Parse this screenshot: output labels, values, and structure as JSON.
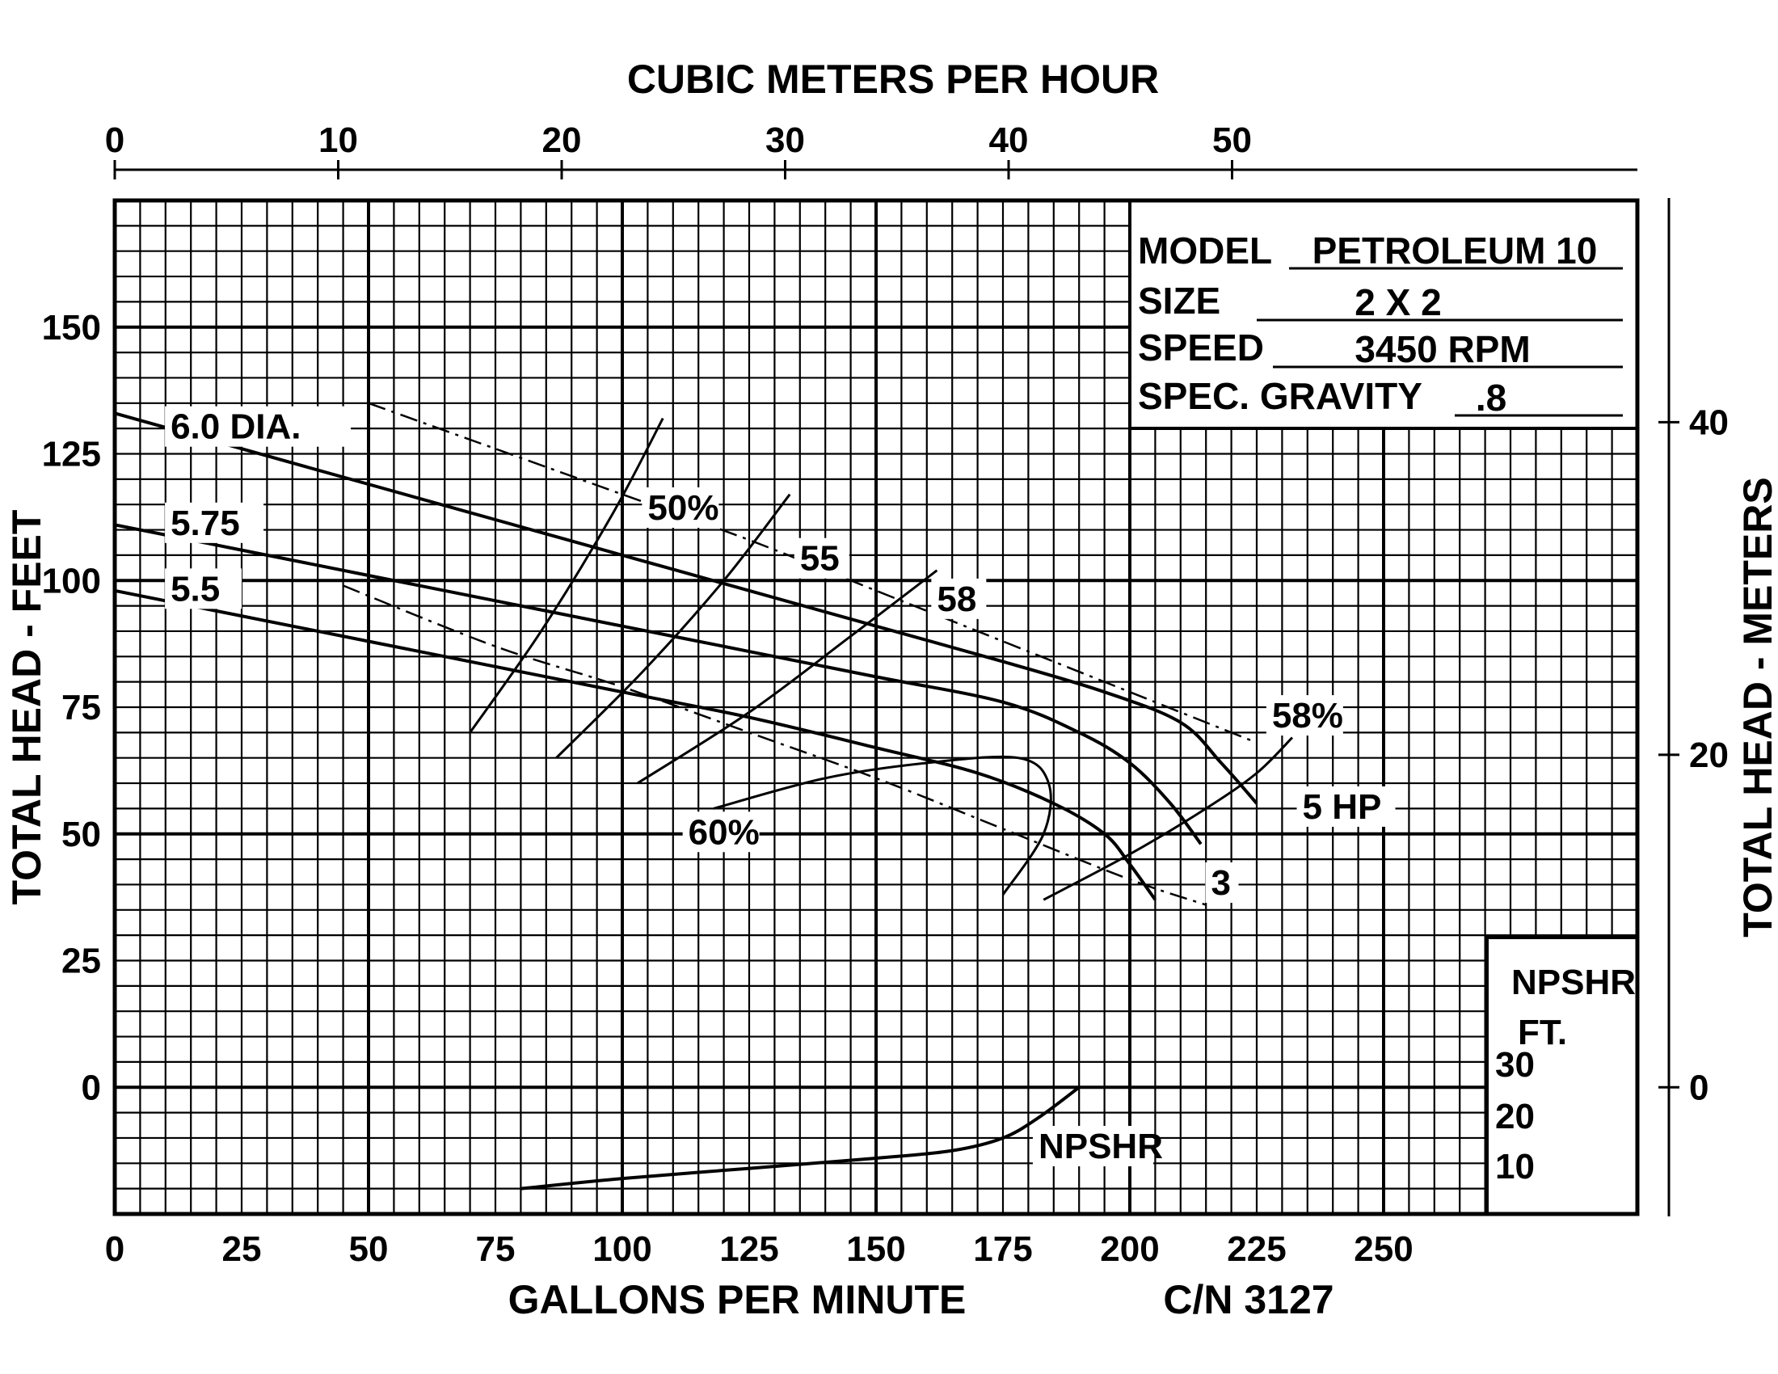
{
  "chart_data": {
    "type": "line",
    "title": "",
    "top_axis_title": "CUBIC METERS PER HOUR",
    "top_axis_ticks": [
      "0",
      "10",
      "20",
      "30",
      "40",
      "50"
    ],
    "xlabel": "GALLONS PER MINUTE",
    "xlim": [
      0,
      300
    ],
    "x_ticks": [
      "0",
      "25",
      "50",
      "75",
      "100",
      "125",
      "150",
      "175",
      "200",
      "225",
      "250"
    ],
    "ylabel": "TOTAL HEAD - FEET",
    "ylim": [
      -25,
      175
    ],
    "y_ticks": [
      "0",
      "25",
      "50",
      "75",
      "100",
      "125",
      "150"
    ],
    "y2label": "TOTAL HEAD - METERS",
    "y2_ticks": [
      "0",
      "20",
      "40"
    ],
    "catalog_number": "C/N 3127",
    "info": {
      "model_label": "MODEL",
      "model_value": "PETROLEUM 10",
      "size_label": "SIZE",
      "size_value": "2 X 2",
      "speed_label": "SPEED",
      "speed_value": "3450 RPM",
      "gravity_label": "SPEC. GRAVITY",
      "gravity_value": ".8"
    },
    "npshr_scale": {
      "title_line1": "NPSHR",
      "title_line2": "FT.",
      "ticks": [
        "30",
        "20",
        "10"
      ]
    },
    "series": [
      {
        "name": "6.0 DIA.",
        "style": "solid",
        "x": [
          0,
          25,
          50,
          75,
          100,
          125,
          150,
          175,
          195,
          210,
          218,
          225
        ],
        "y": [
          133,
          126,
          119,
          112,
          105,
          98,
          91,
          84,
          78,
          72,
          64,
          56
        ]
      },
      {
        "name": "5.75",
        "style": "solid",
        "x": [
          0,
          25,
          50,
          75,
          100,
          125,
          150,
          175,
          190,
          200,
          208,
          214
        ],
        "y": [
          111,
          106,
          101,
          96,
          91,
          86,
          81,
          76,
          70,
          64,
          56,
          48
        ]
      },
      {
        "name": "5.5",
        "style": "solid",
        "x": [
          0,
          25,
          50,
          75,
          100,
          125,
          150,
          170,
          185,
          195,
          200,
          205
        ],
        "y": [
          98,
          93,
          88,
          83,
          78,
          73,
          67,
          62,
          56,
          50,
          44,
          37
        ]
      },
      {
        "name": "5 HP",
        "style": "dashed",
        "x": [
          50,
          75,
          100,
          125,
          150,
          175,
          200,
          225
        ],
        "y": [
          135,
          126,
          117,
          108,
          98,
          88,
          78,
          68
        ]
      },
      {
        "name": "3",
        "style": "dashed",
        "x": [
          45,
          75,
          100,
          125,
          150,
          175,
          200,
          215
        ],
        "y": [
          99,
          87,
          79,
          70,
          61,
          51,
          41,
          36
        ]
      },
      {
        "name": "NPSHR",
        "style": "solid",
        "x": [
          80,
          100,
          125,
          150,
          165,
          175,
          182,
          190
        ],
        "y": [
          -20,
          -18,
          -16,
          -14,
          -12.5,
          -10,
          -6,
          0
        ]
      }
    ],
    "efficiency_lines": [
      {
        "label": "50%",
        "x": [
          70,
          84,
          98,
          108
        ],
        "y": [
          70,
          90,
          113,
          132
        ]
      },
      {
        "label": "55",
        "x": [
          87,
          104,
          120,
          133
        ],
        "y": [
          65,
          82,
          100,
          117
        ]
      },
      {
        "label": "58",
        "x": [
          103,
          125,
          145,
          162
        ],
        "y": [
          60,
          74,
          89,
          102
        ]
      },
      {
        "label": "60%",
        "x": [
          118,
          140,
          160,
          178,
          184,
          183,
          175
        ],
        "y": [
          55,
          61,
          64,
          65,
          60,
          50,
          38
        ]
      },
      {
        "label": "58%",
        "x": [
          183,
          200,
          215,
          225,
          232
        ],
        "y": [
          37,
          46,
          55,
          62,
          69
        ]
      }
    ],
    "grid": true,
    "legend": "none"
  }
}
